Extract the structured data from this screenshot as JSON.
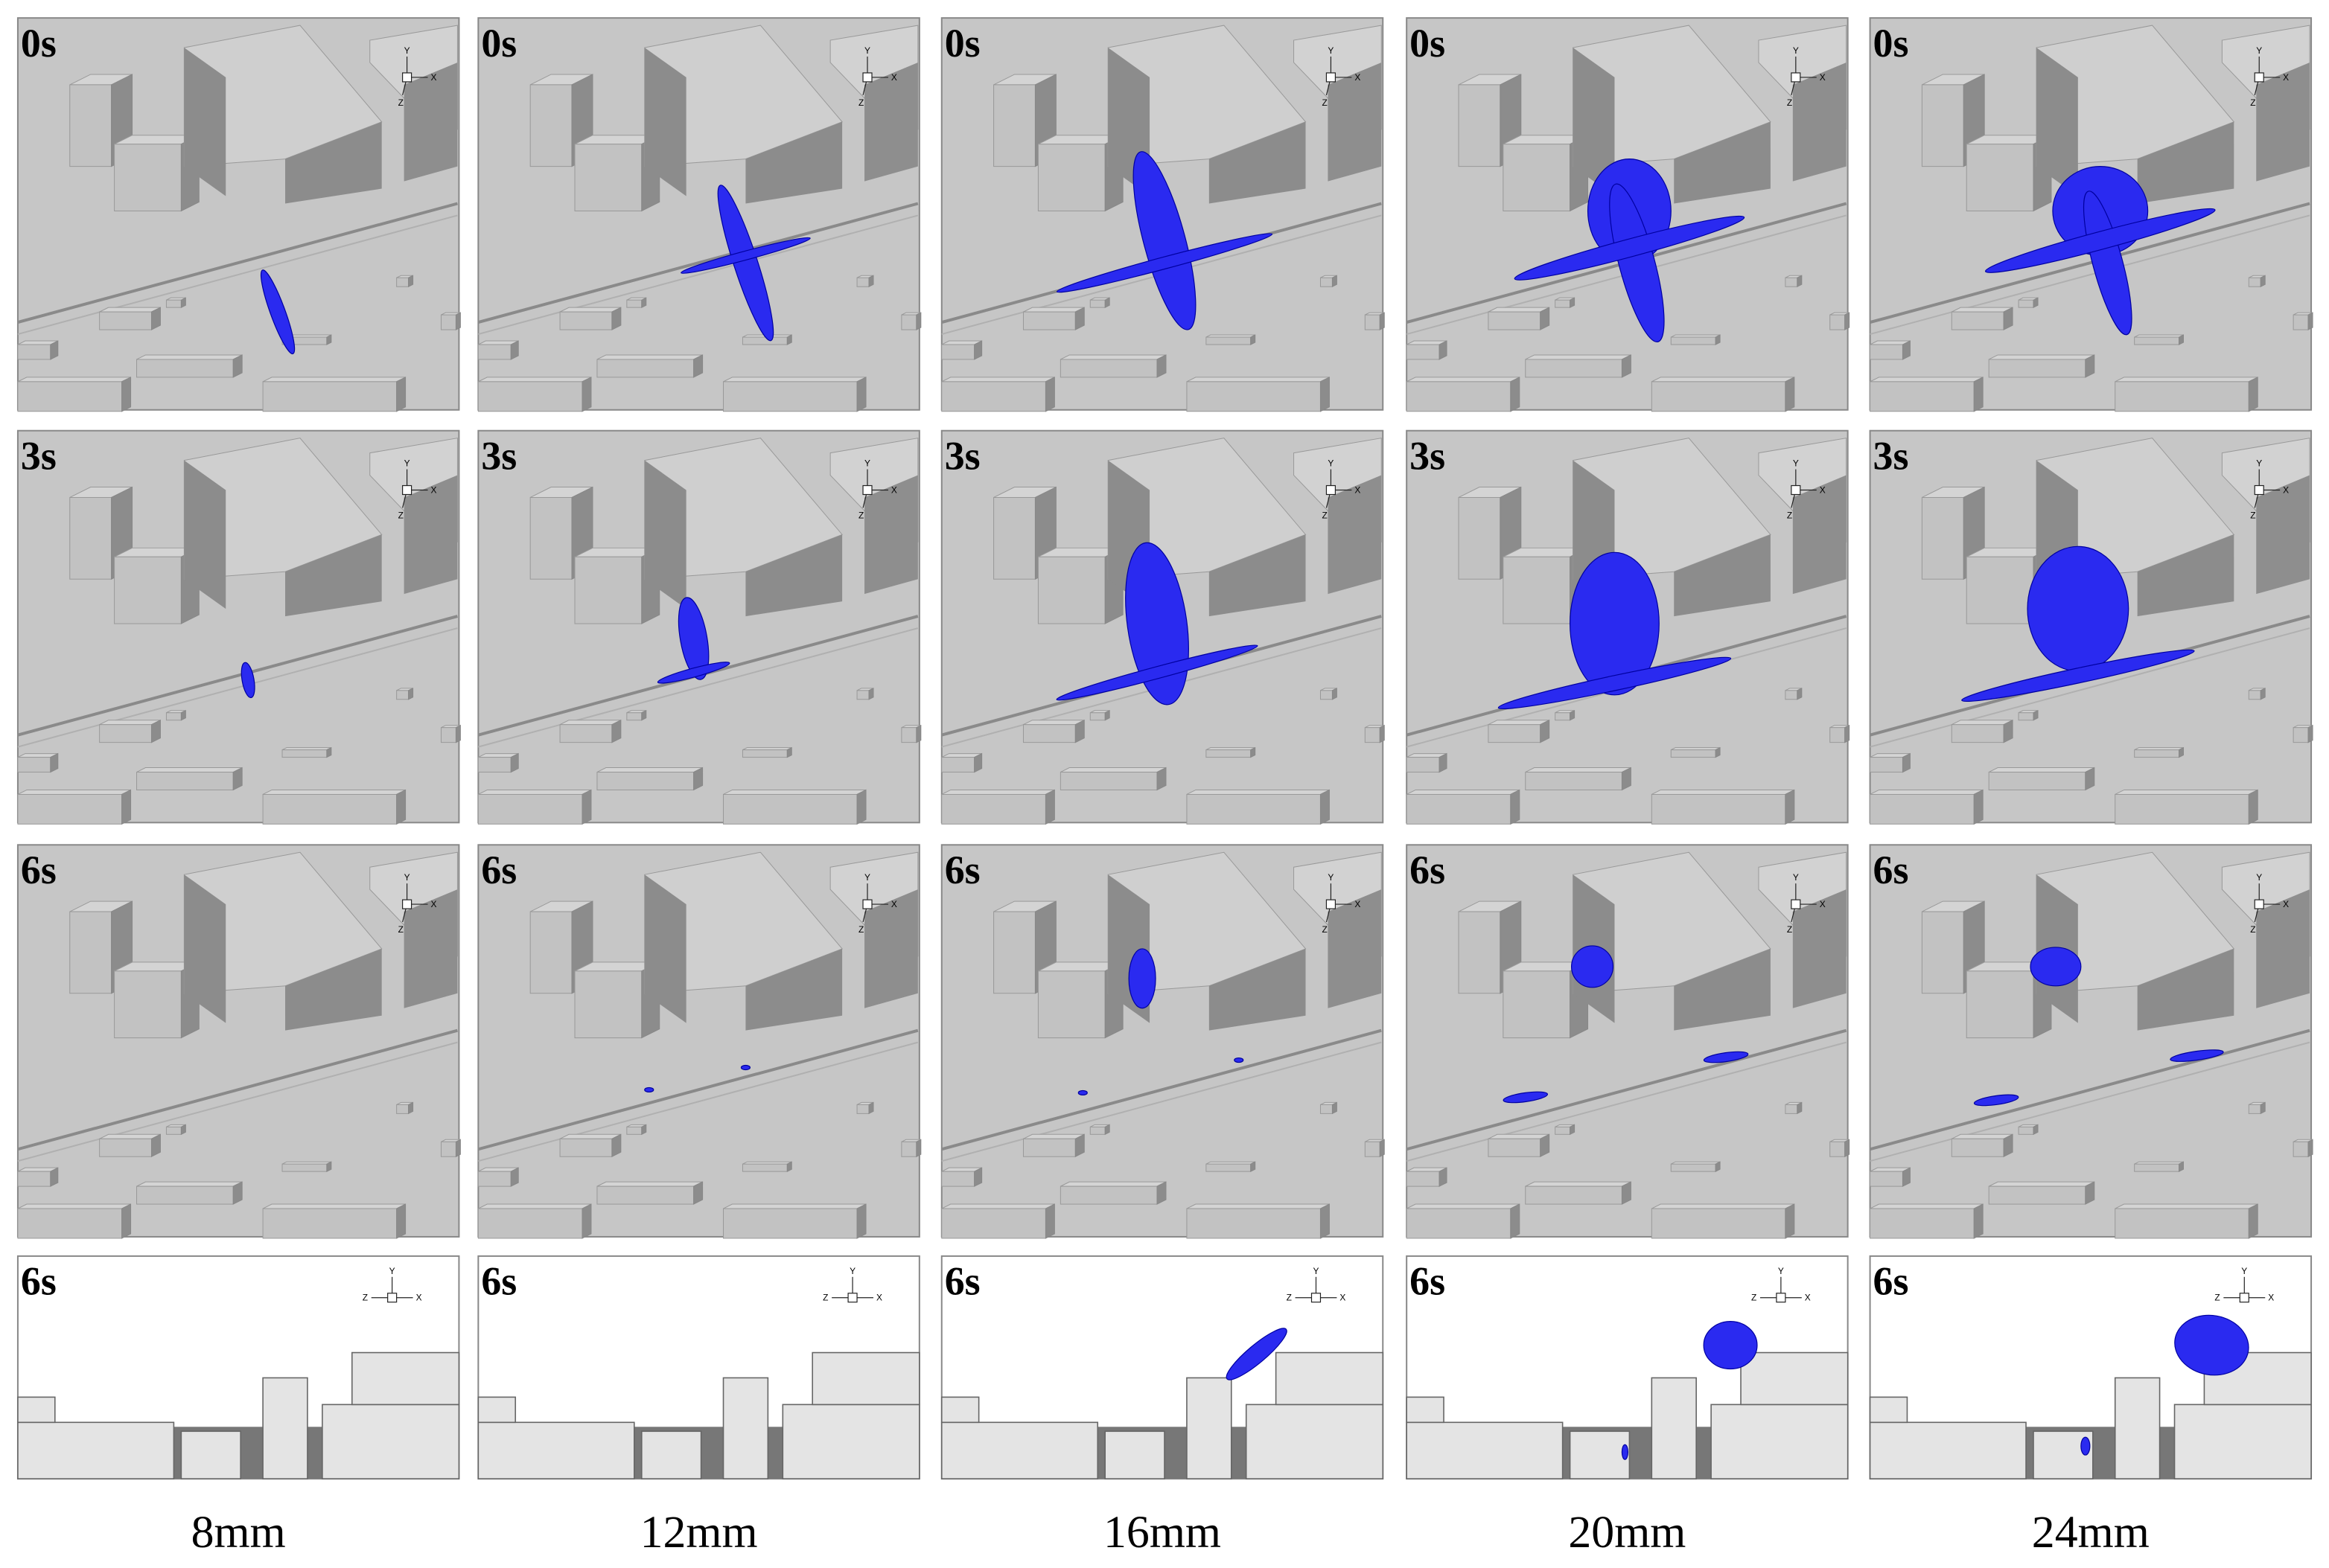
{
  "panels": [
    [
      "0s",
      "0s",
      "0s",
      "0s",
      "0s"
    ],
    [
      "3s",
      "3s",
      "3s",
      "3s",
      "3s"
    ],
    [
      "6s",
      "6s",
      "6s",
      "6s",
      "6s"
    ],
    [
      "6s",
      "6s",
      "6s",
      "6s",
      "6s"
    ]
  ],
  "columns": [
    "8mm",
    "12mm",
    "16mm",
    "20mm",
    "24mm"
  ],
  "axis_labels": {
    "x": "X",
    "y": "Y",
    "z": "Z"
  }
}
